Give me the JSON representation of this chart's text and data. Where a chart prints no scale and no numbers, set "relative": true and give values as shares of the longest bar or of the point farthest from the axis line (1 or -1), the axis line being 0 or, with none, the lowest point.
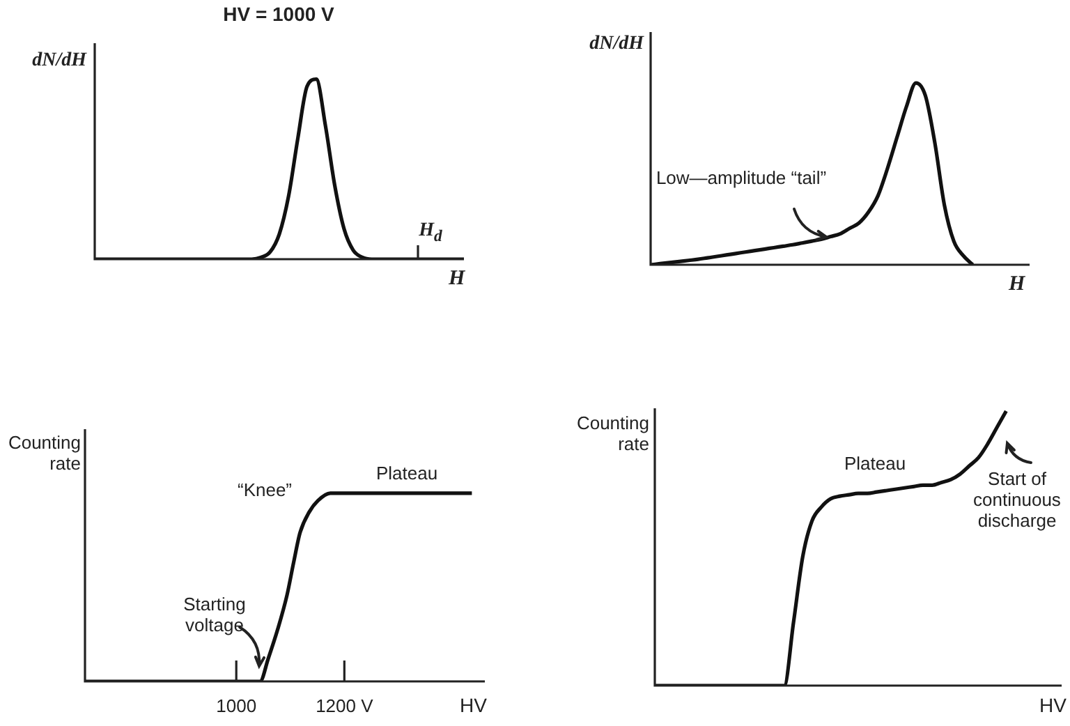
{
  "chart_data": [
    {
      "type": "line",
      "title": "HV = 1000 V",
      "xlabel": "H",
      "ylabel": "dN/dH",
      "relative": true,
      "annotations": [
        "H$_{d}$"
      ],
      "categories": [
        null,
        null,
        null,
        null,
        null,
        null,
        null,
        null,
        null,
        null,
        null,
        null,
        null,
        null,
        null,
        null,
        null,
        null,
        null,
        null,
        null,
        null,
        null,
        null,
        null,
        null,
        null,
        null,
        null,
        null,
        null,
        null,
        null,
        null,
        null,
        null,
        null,
        null,
        null,
        null,
        null
      ],
      "series": [
        {
          "color": "#111111",
          "values": [
            0,
            0,
            0,
            0,
            0,
            0,
            0,
            0,
            0,
            0,
            0,
            0,
            0,
            0,
            0,
            0,
            0,
            0,
            0.01,
            0.04,
            0.14,
            0.35,
            0.67,
            0.96,
            1,
            0.74,
            0.41,
            0.17,
            0.05,
            0.01,
            0,
            0,
            0,
            0,
            0,
            0,
            0,
            0,
            0,
            0,
            0
          ]
        }
      ]
    },
    {
      "type": "line",
      "xlabel": "H",
      "ylabel": "dN/dH",
      "relative": true,
      "annotations": [
        "Low—amplitude “tail”"
      ],
      "categories": [
        null,
        null,
        null,
        null,
        null,
        null,
        null,
        null,
        null,
        null,
        null,
        null,
        null,
        null,
        null,
        null,
        null,
        null,
        null,
        null,
        null,
        null,
        null,
        null,
        null,
        null,
        null,
        null,
        null,
        null,
        null,
        null,
        null,
        null,
        null,
        null,
        null,
        null,
        null,
        null,
        null
      ],
      "series": [
        {
          "color": "#111111",
          "values": [
            0,
            0.006,
            0.012,
            0.018,
            0.024,
            0.03,
            0.038,
            0.046,
            0.054,
            0.062,
            0.07,
            0.078,
            0.086,
            0.094,
            0.102,
            0.11,
            0.12,
            0.13,
            0.14,
            0.155,
            0.17,
            0.2,
            0.23,
            0.29,
            0.38,
            0.53,
            0.7,
            0.87,
            1,
            0.93,
            0.67,
            0.33,
            0.13,
            0.05,
            0,
            null,
            null,
            null,
            null,
            null,
            null
          ]
        }
      ]
    },
    {
      "type": "line",
      "xlabel": "HV",
      "ylabel": "Counting rate",
      "relative": true,
      "annotations": [
        "“Knee”",
        "Plateau",
        "Starting voltage"
      ],
      "xlim": [
        720,
        1460
      ],
      "xticks": [
        1000,
        {
          "value": 1200,
          "label": "1200 V"
        }
      ],
      "x": [
        720,
        1044,
        1059,
        1077,
        1094,
        1106,
        1118,
        1135,
        1151,
        1174,
        1436
      ],
      "series": [
        {
          "color": "#111111",
          "values": [
            0,
            0,
            0.12,
            0.28,
            0.46,
            0.63,
            0.79,
            0.9,
            0.96,
            1,
            1
          ]
        }
      ]
    },
    {
      "type": "line",
      "xlabel": "HV",
      "ylabel": "Counting rate",
      "relative": true,
      "annotations": [
        "Plateau",
        "Start of continuous discharge"
      ],
      "categories": [
        null,
        null,
        null,
        null,
        null,
        null,
        null,
        null,
        null,
        null,
        null,
        null,
        null,
        null,
        null,
        null,
        null,
        null,
        null,
        null,
        null,
        null,
        null,
        null,
        null,
        null,
        null,
        null,
        null,
        null,
        null,
        null,
        null,
        null,
        null,
        null,
        null,
        null,
        null,
        null,
        null,
        null,
        null,
        null,
        null
      ],
      "series": [
        {
          "color": "#111111",
          "values": [
            0,
            0,
            0,
            0,
            0,
            0,
            0,
            0,
            0,
            0,
            0,
            0,
            0,
            0,
            0,
            0.23,
            0.47,
            0.6,
            0.65,
            0.68,
            0.69,
            0.695,
            0.7,
            0.7,
            0.705,
            0.71,
            0.715,
            0.72,
            0.725,
            0.73,
            0.73,
            0.74,
            0.75,
            0.77,
            0.8,
            0.83,
            0.88,
            0.94,
            1,
            null,
            null,
            null,
            null,
            null,
            null
          ]
        }
      ]
    }
  ]
}
